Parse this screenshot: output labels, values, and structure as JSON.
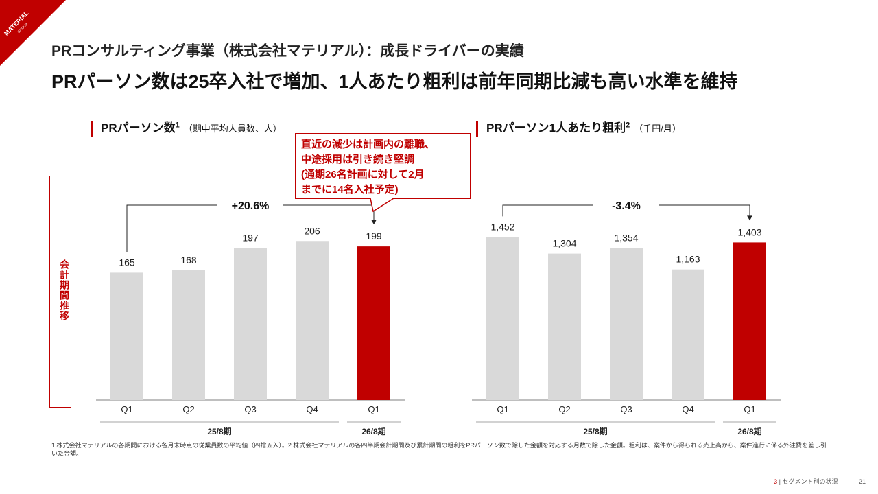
{
  "header": {
    "logo_text": "MATERIAL",
    "logo_sub": "GROUP",
    "subtitle": "PRコンサルティング事業（株式会社マテリアル）：成長ドライバーの実績",
    "title": "PRパーソン数は25卒入社で増加、1人あたり粗利は前年同期比減も高い水準を維持"
  },
  "side_label": "会計期間推移",
  "colors": {
    "accent": "#c00000",
    "bar_gray": "#d9d9d9",
    "axis": "#7f7f7f"
  },
  "left_section": {
    "title": "PRパーソン数",
    "sup": "1",
    "unit": "（期中平均人員数、人）"
  },
  "right_section": {
    "title": "PRパーソン1人あたり粗利",
    "sup": "2",
    "unit": "（千円/月）"
  },
  "callout": {
    "lines": [
      "直近の減少は計画内の離職、",
      "中途採用は引き続き堅調",
      "(通期26名計画に対して2月",
      "までに14名入社予定)"
    ]
  },
  "chart_data": [
    {
      "type": "bar",
      "title": "PRパーソン数",
      "categories": [
        "Q1",
        "Q2",
        "Q3",
        "Q4",
        "Q1"
      ],
      "values": [
        165,
        168,
        197,
        206,
        199
      ],
      "value_labels": [
        "165",
        "168",
        "197",
        "206",
        "199"
      ],
      "highlight_index": 4,
      "ylim": [
        0,
        240
      ],
      "period_groups": [
        {
          "label": "25/8期",
          "from": 0,
          "to": 3
        },
        {
          "label": "26/8期",
          "from": 4,
          "to": 4
        }
      ],
      "change_annotation": {
        "label": "+20.6%",
        "from": 0,
        "to": 4
      }
    },
    {
      "type": "bar",
      "title": "PRパーソン1人あたり粗利",
      "categories": [
        "Q1",
        "Q2",
        "Q3",
        "Q4",
        "Q1"
      ],
      "values": [
        1452,
        1304,
        1354,
        1163,
        1403
      ],
      "value_labels": [
        "1,452",
        "1,304",
        "1,354",
        "1,163",
        "1,403"
      ],
      "highlight_index": 4,
      "ylim": [
        0,
        1650
      ],
      "period_groups": [
        {
          "label": "25/8期",
          "from": 0,
          "to": 3
        },
        {
          "label": "26/8期",
          "from": 4,
          "to": 4
        }
      ],
      "change_annotation": {
        "label": "-3.4%",
        "from": 0,
        "to": 4
      }
    }
  ],
  "footnote": "1.株式会社マテリアルの各期間における各月末時点の従業員数の平均値（四捨五入）。2.株式会社マテリアルの各四半期会計期間及び累計期間の粗利をPRパーソン数で除した金額を対応する月数で除した金額。粗利は、案件から得られる売上高から、案件進行に係る外注費を差し引いた金額。",
  "footer": {
    "page_num": "3",
    "section": "セグメント別の状況",
    "slide_num": "21"
  }
}
